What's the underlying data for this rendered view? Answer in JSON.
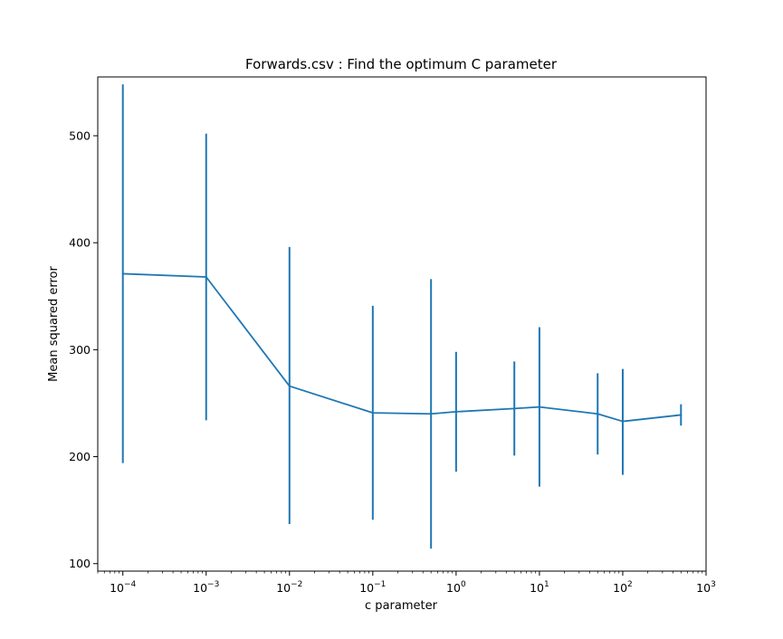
{
  "chart_data": {
    "type": "line",
    "title": "Forwards.csv : Find the optimum C parameter",
    "xlabel": "c parameter",
    "ylabel": "Mean squared error",
    "xscale": "log",
    "xlim": [
      5e-05,
      1000
    ],
    "ylim": [
      93,
      555
    ],
    "grid": false,
    "legend": "none",
    "color": "#1f77b4",
    "x_ticks": [
      {
        "value": 0.0001,
        "base": "10",
        "exp": "−4"
      },
      {
        "value": 0.001,
        "base": "10",
        "exp": "−3"
      },
      {
        "value": 0.01,
        "base": "10",
        "exp": "−2"
      },
      {
        "value": 0.1,
        "base": "10",
        "exp": "−1"
      },
      {
        "value": 1,
        "base": "10",
        "exp": "0"
      },
      {
        "value": 10,
        "base": "10",
        "exp": "1"
      },
      {
        "value": 100,
        "base": "10",
        "exp": "2"
      },
      {
        "value": 1000,
        "base": "10",
        "exp": "3"
      }
    ],
    "y_ticks": [
      100,
      200,
      300,
      400,
      500
    ],
    "series": [
      {
        "x": [
          0.0001,
          0.001,
          0.01,
          0.1,
          0.5,
          1,
          5,
          10,
          50,
          100,
          500
        ],
        "y": [
          371,
          368,
          266,
          241,
          240,
          242,
          245,
          246.5,
          240,
          233,
          239
        ],
        "err_low": [
          194,
          234,
          137,
          141,
          114,
          186,
          201,
          172,
          202,
          183,
          229
        ],
        "err_high": [
          548,
          502,
          396,
          341,
          366,
          298,
          289,
          321,
          278,
          282,
          249
        ]
      }
    ]
  }
}
